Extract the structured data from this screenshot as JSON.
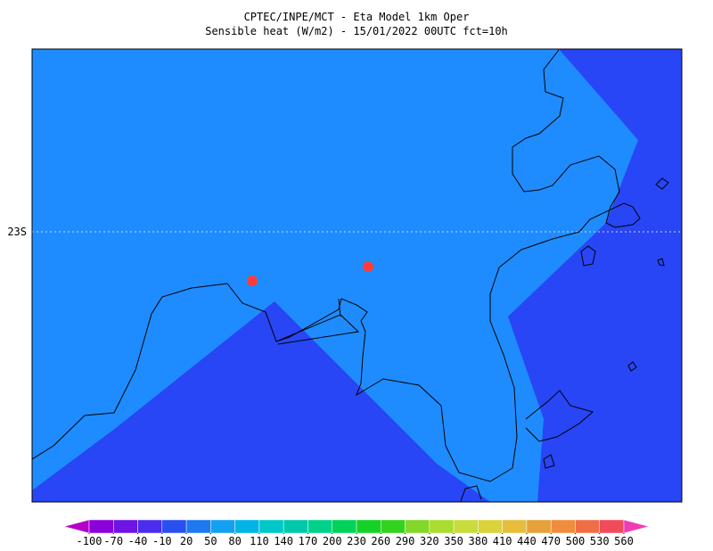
{
  "header": {
    "title": "CPTEC/INPE/MCT -  Eta Model 1km Oper",
    "subtitle": "Sensible heat (W/m2) - 15/01/2022 00UTC fct=10h"
  },
  "map": {
    "lat_label": "23S"
  },
  "colorbar": {
    "ticks": [
      -100,
      -70,
      -40,
      -10,
      20,
      50,
      80,
      110,
      140,
      170,
      200,
      230,
      260,
      290,
      320,
      350,
      380,
      410,
      440,
      470,
      500,
      530,
      560
    ],
    "colors": [
      "#b400c8",
      "#8c00dc",
      "#6e14e6",
      "#4b2df0",
      "#2850f0",
      "#1e78f0",
      "#14a0f0",
      "#00b4e6",
      "#00c8c8",
      "#00c8aa",
      "#00d28c",
      "#00d25a",
      "#14d228",
      "#32d21e",
      "#82d728",
      "#aadc32",
      "#c8dc3c",
      "#dcd23c",
      "#e6be3c",
      "#e6a03c",
      "#f08c3c",
      "#f06e46",
      "#f04b5a",
      "#f02878",
      "#f03cb4"
    ]
  }
}
